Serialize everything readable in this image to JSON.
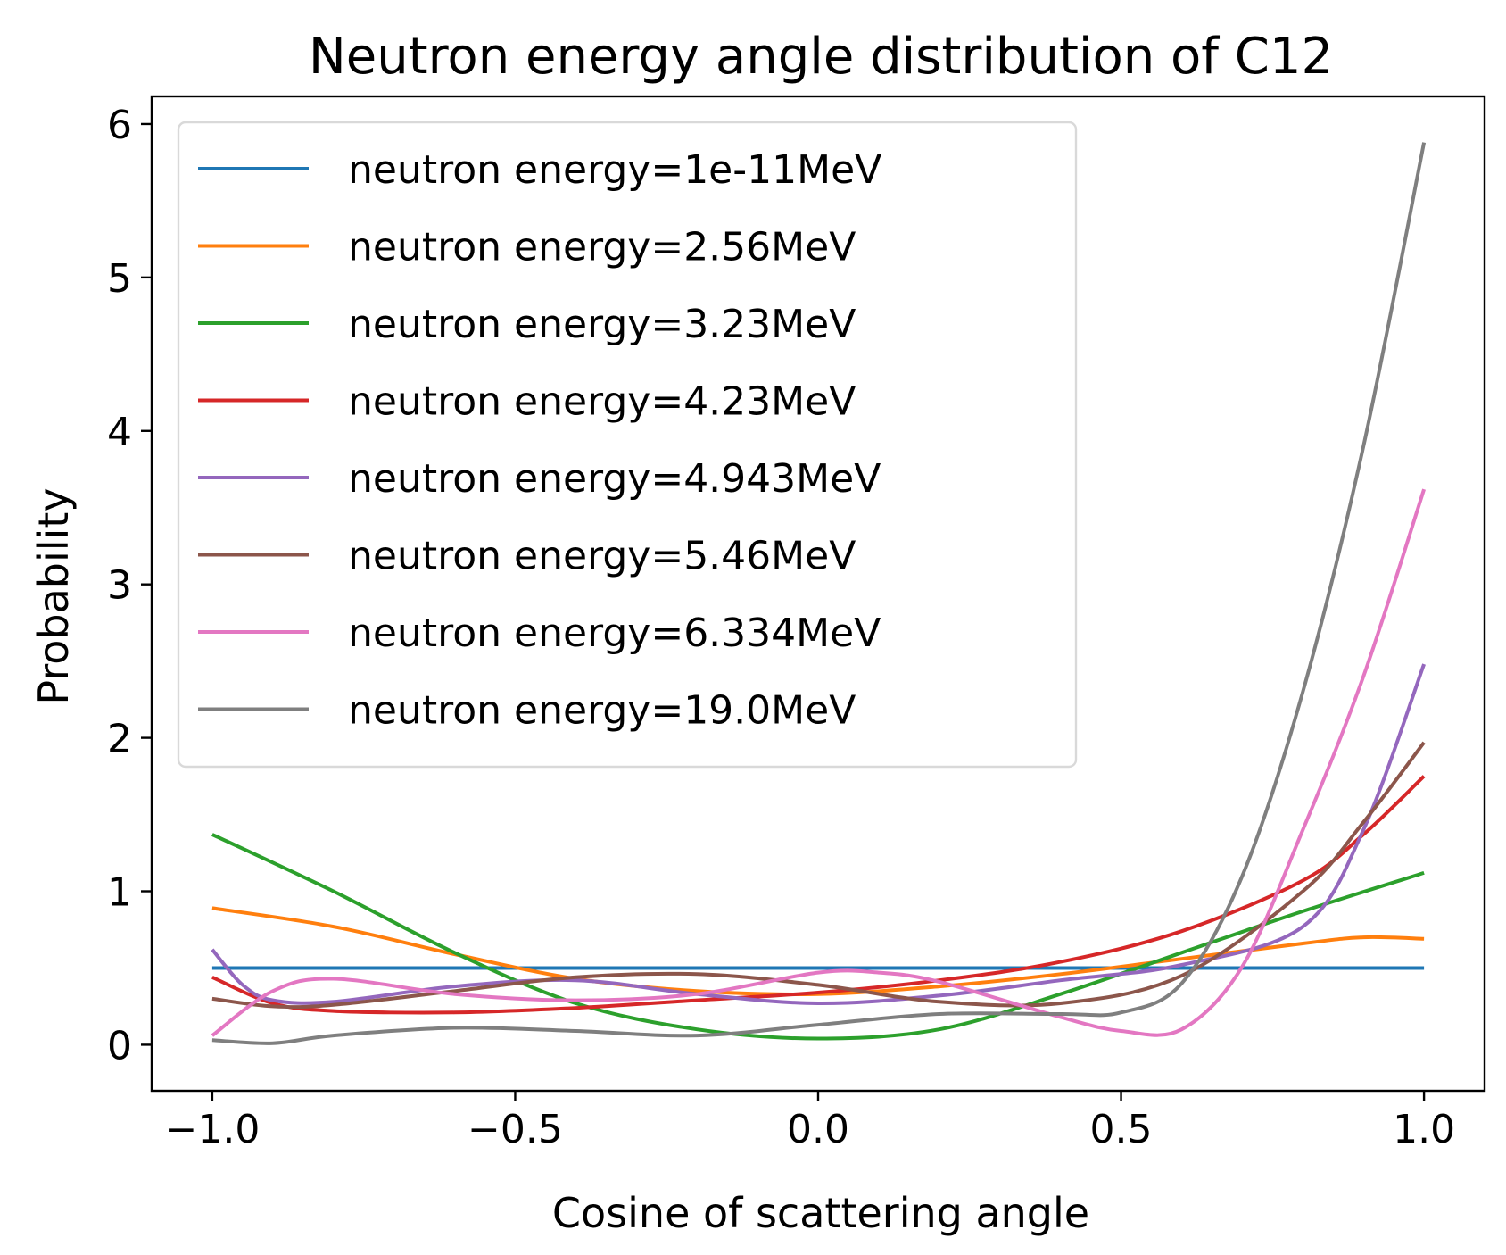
{
  "chart_data": {
    "type": "line",
    "title": "Neutron energy angle distribution of C12",
    "xlabel": "Cosine of scattering angle",
    "ylabel": "Probability",
    "xlim": [
      -1.1,
      1.1
    ],
    "ylim": [
      -0.3,
      6.18
    ],
    "xticks": [
      -1.0,
      -0.5,
      0.0,
      0.5,
      1.0
    ],
    "xtick_labels": [
      "−1.0",
      "−0.5",
      "0.0",
      "0.5",
      "1.0"
    ],
    "yticks": [
      0,
      1,
      2,
      3,
      4,
      5,
      6
    ],
    "ytick_labels": [
      "0",
      "1",
      "2",
      "3",
      "4",
      "5",
      "6"
    ],
    "grid": false,
    "legend_position": "top-left",
    "series": [
      {
        "name": "neutron energy=1e-11MeV",
        "color": "#1f77b4",
        "x": [
          -1.0,
          -0.5,
          0.0,
          0.5,
          1.0
        ],
        "y": [
          0.5,
          0.5,
          0.5,
          0.5,
          0.5
        ]
      },
      {
        "name": "neutron energy=2.56MeV",
        "color": "#ff7f0e",
        "x": [
          -1.0,
          -0.8,
          -0.6,
          -0.4,
          -0.2,
          0.0,
          0.2,
          0.4,
          0.6,
          0.8,
          0.9,
          1.0
        ],
        "y": [
          0.89,
          0.77,
          0.59,
          0.43,
          0.35,
          0.33,
          0.38,
          0.46,
          0.56,
          0.66,
          0.7,
          0.69
        ]
      },
      {
        "name": "neutron energy=3.23MeV",
        "color": "#2ca02c",
        "x": [
          -1.0,
          -0.8,
          -0.6,
          -0.4,
          -0.2,
          0.0,
          0.2,
          0.4,
          0.6,
          0.8,
          1.0
        ],
        "y": [
          1.37,
          1.0,
          0.6,
          0.27,
          0.1,
          0.04,
          0.1,
          0.33,
          0.6,
          0.87,
          1.12
        ]
      },
      {
        "name": "neutron energy=4.23MeV",
        "color": "#d62728",
        "x": [
          -1.0,
          -0.9,
          -0.8,
          -0.6,
          -0.4,
          -0.2,
          0.0,
          0.2,
          0.4,
          0.6,
          0.8,
          0.9,
          1.0
        ],
        "y": [
          0.44,
          0.27,
          0.22,
          0.21,
          0.24,
          0.29,
          0.34,
          0.42,
          0.54,
          0.74,
          1.07,
          1.37,
          1.75
        ]
      },
      {
        "name": "neutron energy=4.943MeV",
        "color": "#9467bd",
        "x": [
          -1.0,
          -0.95,
          -0.9,
          -0.8,
          -0.6,
          -0.4,
          -0.2,
          0.0,
          0.2,
          0.4,
          0.6,
          0.8,
          0.9,
          1.0
        ],
        "y": [
          0.62,
          0.39,
          0.29,
          0.28,
          0.38,
          0.42,
          0.33,
          0.27,
          0.32,
          0.42,
          0.52,
          0.77,
          1.4,
          2.48
        ]
      },
      {
        "name": "neutron energy=5.46MeV",
        "color": "#8c564b",
        "x": [
          -1.0,
          -0.9,
          -0.8,
          -0.6,
          -0.4,
          -0.2,
          0.0,
          0.2,
          0.4,
          0.6,
          0.8,
          0.9,
          1.0
        ],
        "y": [
          0.3,
          0.25,
          0.26,
          0.35,
          0.44,
          0.46,
          0.39,
          0.28,
          0.27,
          0.45,
          1.0,
          1.45,
          1.97
        ]
      },
      {
        "name": "neutron energy=6.334MeV",
        "color": "#e377c2",
        "x": [
          -1.0,
          -0.9,
          -0.8,
          -0.6,
          -0.4,
          -0.2,
          0.0,
          0.1,
          0.2,
          0.4,
          0.5,
          0.6,
          0.7,
          0.8,
          0.9,
          1.0
        ],
        "y": [
          0.06,
          0.35,
          0.43,
          0.33,
          0.29,
          0.33,
          0.47,
          0.47,
          0.41,
          0.18,
          0.09,
          0.1,
          0.51,
          1.4,
          2.4,
          3.62
        ]
      },
      {
        "name": "neutron energy=19.0MeV",
        "color": "#7f7f7f",
        "x": [
          -1.0,
          -0.9,
          -0.8,
          -0.6,
          -0.4,
          -0.2,
          0.0,
          0.2,
          0.4,
          0.5,
          0.6,
          0.7,
          0.8,
          0.9,
          1.0
        ],
        "y": [
          0.03,
          0.01,
          0.06,
          0.11,
          0.09,
          0.06,
          0.13,
          0.2,
          0.2,
          0.21,
          0.4,
          1.1,
          2.3,
          3.9,
          5.88
        ]
      }
    ]
  }
}
